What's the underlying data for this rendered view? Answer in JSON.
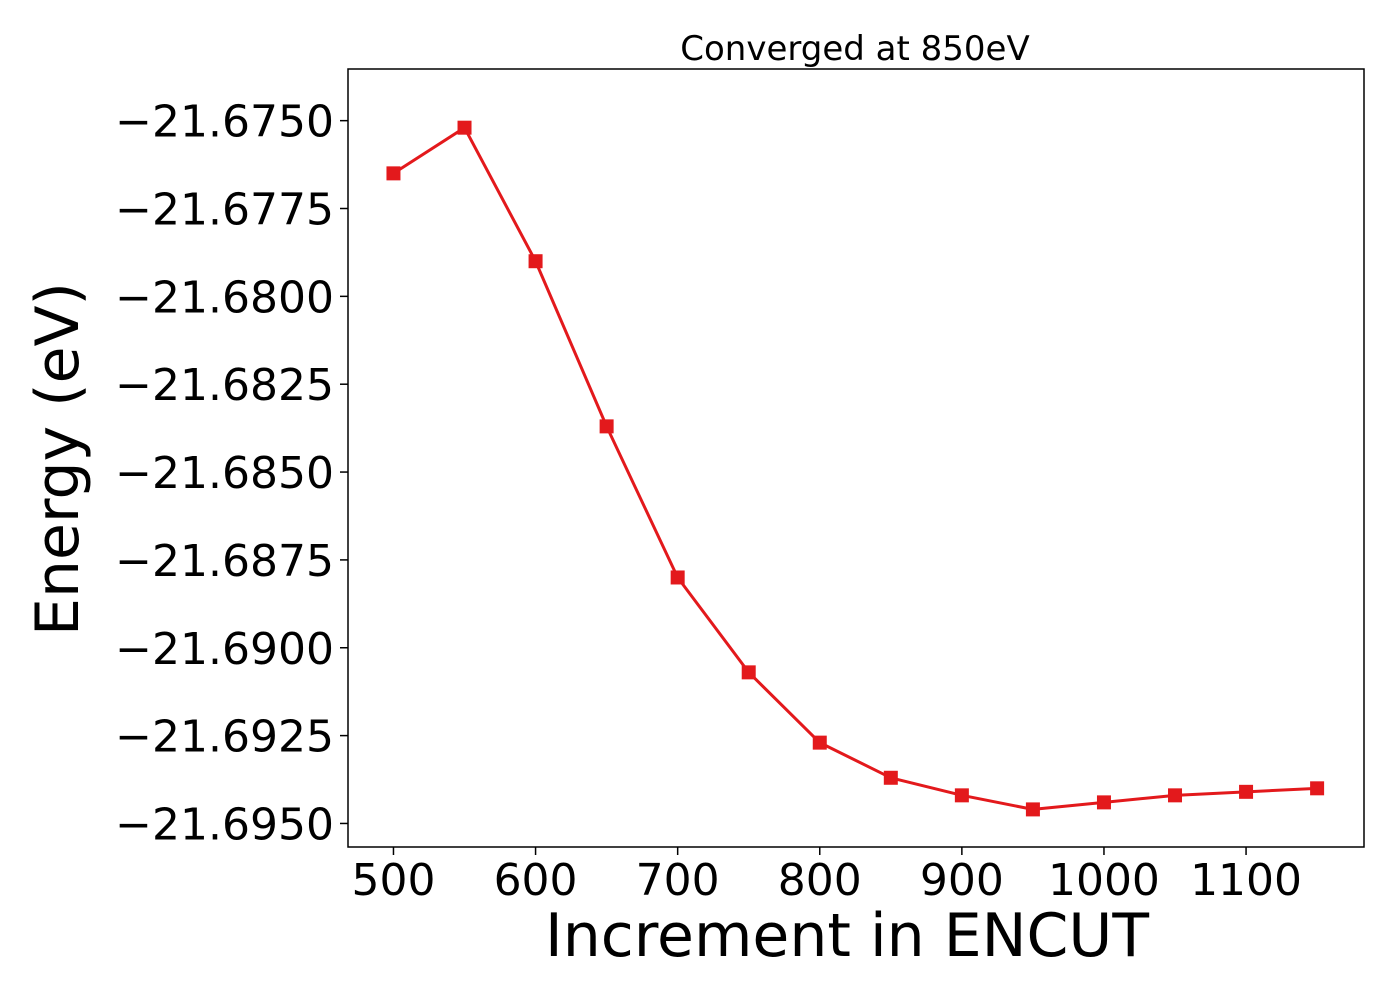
{
  "chart_data": {
    "type": "line",
    "title": "Converged at 850eV",
    "xlabel": "Increment in ENCUT",
    "ylabel": "Energy (eV)",
    "x": [
      500,
      550,
      600,
      650,
      700,
      750,
      800,
      850,
      900,
      950,
      1000,
      1050,
      1100,
      1150
    ],
    "series": [
      {
        "values": [
          -21.6765,
          -21.6752,
          -21.679,
          -21.6837,
          -21.688,
          -21.6907,
          -21.6927,
          -21.6937,
          -21.6942,
          -21.6946,
          -21.6944,
          -21.6942,
          -21.6941,
          -21.694
        ],
        "color": "#e3191c",
        "marker": "square"
      }
    ],
    "xlim": [
      468,
      1183
    ],
    "ylim": [
      -21.69567,
      -21.67353
    ],
    "xticks": [
      500,
      600,
      700,
      800,
      900,
      1000,
      1100
    ],
    "xtick_labels": [
      "500",
      "600",
      "700",
      "800",
      "900",
      "1000",
      "1100"
    ],
    "yticks": [
      -21.675,
      -21.6775,
      -21.68,
      -21.6825,
      -21.685,
      -21.6875,
      -21.69,
      -21.6925,
      -21.695
    ],
    "ytick_labels": [
      "−21.6750",
      "−21.6775",
      "−21.6800",
      "−21.6825",
      "−21.6850",
      "−21.6875",
      "−21.6900",
      "−21.6925",
      "−21.6950"
    ],
    "grid": false,
    "legend": false
  }
}
